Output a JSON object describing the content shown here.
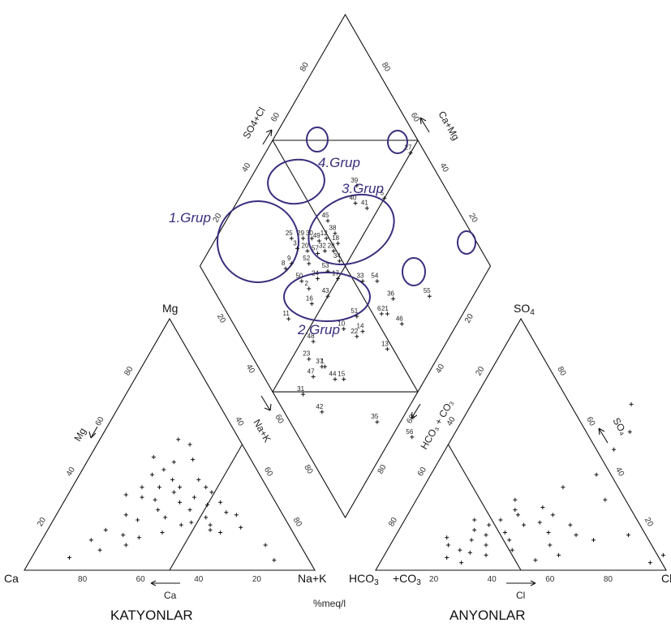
{
  "chart_data": {
    "type": "piper",
    "cation_triangle": {
      "corners": [
        "Ca",
        "Mg",
        "Na+K"
      ],
      "title": "KATYONLAR",
      "axis_labels": {
        "mg": "Mg",
        "nak": "Na+K",
        "ca": "Ca"
      },
      "ticks": {
        "left": [
          "20",
          "40",
          "60",
          "80"
        ],
        "right": [
          "40",
          "60",
          "80"
        ],
        "bottom": [
          "80",
          "60",
          "40",
          "20"
        ]
      }
    },
    "anion_triangle": {
      "corners": [
        "HCO3",
        "SO4",
        "Cl"
      ],
      "corner_labels": {
        "hco3": "HCO",
        "hco3_sub": "3",
        "co3": "+CO",
        "co3_sub": "3",
        "so4": "SO",
        "so4_sub": "4",
        "cl": "Cl"
      },
      "title": "ANYONLAR",
      "axis_labels": {
        "hco3co3": "HCO₃ + CO₃",
        "so4": "SO₄",
        "cl": "Cl"
      },
      "ticks": {
        "left": [
          "80",
          "60",
          "40",
          "20"
        ],
        "right": [
          "80",
          "60",
          "40",
          "20"
        ],
        "bottom": [
          "20",
          "40",
          "60",
          "80"
        ]
      }
    },
    "diamond": {
      "axis_labels": {
        "so4cl": "SO4+Cl",
        "camg": "Ca+Mg"
      },
      "ticks": {
        "upper_left": [
          "80",
          "60",
          "40",
          "20"
        ],
        "upper_right": [
          "80",
          "60",
          "40",
          "20"
        ],
        "lower_left": [
          "20",
          "40",
          "60",
          "80"
        ],
        "lower_right": [
          "20",
          "40",
          "60",
          "80"
        ]
      }
    },
    "unit": "%meq/l",
    "groups": [
      "1.Grup",
      "2.Grup",
      "3.Grup",
      "4.Grup"
    ],
    "cation_points": [
      [
        0.27,
        0.52
      ],
      [
        0.32,
        0.5
      ],
      [
        0.22,
        0.45
      ],
      [
        0.3,
        0.43
      ],
      [
        0.36,
        0.44
      ],
      [
        0.25,
        0.38
      ],
      [
        0.28,
        0.4
      ],
      [
        0.33,
        0.36
      ],
      [
        0.2,
        0.3
      ],
      [
        0.26,
        0.29
      ],
      [
        0.31,
        0.28
      ],
      [
        0.36,
        0.31
      ],
      [
        0.24,
        0.22
      ],
      [
        0.29,
        0.2
      ],
      [
        0.34,
        0.24
      ],
      [
        0.38,
        0.21
      ],
      [
        0.2,
        0.16
      ],
      [
        0.27,
        0.14
      ],
      [
        0.33,
        0.13
      ],
      [
        0.4,
        0.15
      ],
      [
        0.22,
        0.08
      ],
      [
        0.3,
        0.1
      ],
      [
        0.13,
        0.05
      ],
      [
        0.42,
        0.36
      ],
      [
        0.46,
        0.33
      ],
      [
        0.44,
        0.29
      ],
      [
        0.49,
        0.31
      ],
      [
        0.45,
        0.24
      ],
      [
        0.5,
        0.26
      ],
      [
        0.52,
        0.21
      ],
      [
        0.48,
        0.19
      ],
      [
        0.55,
        0.18
      ],
      [
        0.54,
        0.27
      ],
      [
        0.58,
        0.23
      ],
      [
        0.56,
        0.16
      ],
      [
        0.62,
        0.22
      ],
      [
        0.6,
        0.15
      ],
      [
        0.66,
        0.17
      ],
      [
        0.4,
        0.27
      ],
      [
        0.37,
        0.33
      ],
      [
        0.17,
        0.12
      ],
      [
        0.24,
        0.33
      ],
      [
        0.3,
        0.33
      ],
      [
        0.78,
        0.1
      ],
      [
        0.84,
        0.04
      ],
      [
        0.45,
        0.18
      ]
    ],
    "anion_points": [
      [
        0.2,
        0.1
      ],
      [
        0.22,
        0.05
      ],
      [
        0.25,
        0.08
      ],
      [
        0.27,
        0.12
      ],
      [
        0.29,
        0.07
      ],
      [
        0.31,
        0.14
      ],
      [
        0.33,
        0.1
      ],
      [
        0.35,
        0.06
      ],
      [
        0.37,
        0.15
      ],
      [
        0.3,
        0.18
      ],
      [
        0.26,
        0.16
      ],
      [
        0.33,
        0.2
      ],
      [
        0.38,
        0.22
      ],
      [
        0.42,
        0.18
      ],
      [
        0.4,
        0.12
      ],
      [
        0.36,
        0.24
      ],
      [
        0.45,
        0.25
      ],
      [
        0.47,
        0.19
      ],
      [
        0.43,
        0.08
      ],
      [
        0.5,
        0.22
      ],
      [
        0.52,
        0.15
      ],
      [
        0.55,
        0.1
      ],
      [
        0.53,
        0.04
      ],
      [
        0.58,
        0.18
      ],
      [
        0.6,
        0.06
      ],
      [
        0.62,
        0.14
      ],
      [
        0.24,
        0.2
      ],
      [
        0.18,
        0.13
      ],
      [
        0.34,
        0.28
      ],
      [
        0.65,
        0.28
      ],
      [
        0.57,
        0.38
      ],
      [
        0.58,
        0.48
      ],
      [
        0.55,
        0.66
      ],
      [
        0.6,
        0.55
      ],
      [
        0.8,
        0.14
      ],
      [
        0.69,
        0.12
      ],
      [
        0.93,
        0.03
      ],
      [
        0.96,
        0.06
      ],
      [
        0.48,
        0.33
      ],
      [
        0.28,
        0.03
      ]
    ],
    "diamond_points": [
      {
        "label": "27",
        "ca": 0.5,
        "so4cl": 0.95
      },
      {
        "label": "55",
        "ca": 0.15,
        "so4cl": 0.73
      },
      {
        "label": "39",
        "ca": 0.62,
        "so4cl": 0.7
      },
      {
        "label": "5",
        "ca": 0.5,
        "so4cl": 0.77
      },
      {
        "label": "40",
        "ca": 0.59,
        "so4cl": 0.66
      },
      {
        "label": "41",
        "ca": 0.54,
        "so4cl": 0.69
      },
      {
        "label": "45",
        "ca": 0.65,
        "so4cl": 0.53
      },
      {
        "label": "38",
        "ca": 0.6,
        "so4cl": 0.53
      },
      {
        "label": "18",
        "ca": 0.57,
        "so4cl": 0.52
      },
      {
        "label": "12",
        "ca": 0.62,
        "so4cl": 0.49
      },
      {
        "label": "28",
        "ca": 0.57,
        "so4cl": 0.49
      },
      {
        "label": "34",
        "ca": 0.53,
        "so4cl": 0.49
      },
      {
        "label": "49",
        "ca": 0.64,
        "so4cl": 0.46
      },
      {
        "label": "30",
        "ca": 0.67,
        "so4cl": 0.44
      },
      {
        "label": "32",
        "ca": 0.6,
        "so4cl": 0.46
      },
      {
        "label": "57",
        "ca": 0.62,
        "so4cl": 0.43
      },
      {
        "label": "53",
        "ca": 0.55,
        "so4cl": 0.43
      },
      {
        "label": "17",
        "ca": 0.5,
        "so4cl": 0.45
      },
      {
        "label": "29",
        "ca": 0.7,
        "so4cl": 0.41
      },
      {
        "label": "20",
        "ca": 0.66,
        "so4cl": 0.4
      },
      {
        "label": "3",
        "ca": 0.7,
        "so4cl": 0.37
      },
      {
        "label": "25",
        "ca": 0.74,
        "so4cl": 0.37
      },
      {
        "label": "52",
        "ca": 0.63,
        "so4cl": 0.38
      },
      {
        "label": "24",
        "ca": 0.57,
        "so4cl": 0.38
      },
      {
        "label": "9",
        "ca": 0.69,
        "so4cl": 0.32
      },
      {
        "label": "50",
        "ca": 0.62,
        "so4cl": 0.32
      },
      {
        "label": "2",
        "ca": 0.58,
        "so4cl": 0.33
      },
      {
        "label": "43",
        "ca": 0.5,
        "so4cl": 0.38
      },
      {
        "label": "16",
        "ca": 0.54,
        "so4cl": 0.31
      },
      {
        "label": "8",
        "ca": 0.7,
        "so4cl": 0.29
      },
      {
        "label": "48",
        "ca": 0.46,
        "so4cl": 0.24
      },
      {
        "label": "11",
        "ca": 0.59,
        "so4cl": 0.2
      },
      {
        "label": "33",
        "ca": 0.41,
        "so4cl": 0.53
      },
      {
        "label": "54",
        "ca": 0.36,
        "so4cl": 0.58
      },
      {
        "label": "36",
        "ca": 0.27,
        "so4cl": 0.6
      },
      {
        "label": "21",
        "ca": 0.26,
        "so4cl": 0.55
      },
      {
        "label": "46",
        "ca": 0.19,
        "so4cl": 0.58
      },
      {
        "label": "6",
        "ca": 0.28,
        "so4cl": 0.53
      },
      {
        "label": "13",
        "ca": 0.19,
        "so4cl": 0.48
      },
      {
        "label": "51",
        "ca": 0.36,
        "so4cl": 0.44
      },
      {
        "label": "14",
        "ca": 0.31,
        "so4cl": 0.43
      },
      {
        "label": "22",
        "ca": 0.32,
        "so4cl": 0.4
      },
      {
        "label": "10",
        "ca": 0.38,
        "so4cl": 0.37
      },
      {
        "label": "35",
        "ca": 0.08,
        "so4cl": 0.3
      },
      {
        "label": "56",
        "ca": -0.07,
        "so4cl": 0.39
      },
      {
        "label": "37",
        "ca": 0.38,
        "so4cl": 0.22
      },
      {
        "label": "1",
        "ca": 0.37,
        "so4cl": 0.23
      },
      {
        "label": "15",
        "ca": 0.28,
        "so4cl": 0.27
      },
      {
        "label": "23",
        "ca": 0.44,
        "so4cl": 0.19
      },
      {
        "label": "44",
        "ca": 0.31,
        "so4cl": 0.24
      },
      {
        "label": "47",
        "ca": 0.39,
        "so4cl": 0.17
      },
      {
        "label": "31",
        "ca": 0.39,
        "so4cl": 0.1
      },
      {
        "label": "42",
        "ca": 0.29,
        "so4cl": 0.13
      }
    ]
  }
}
